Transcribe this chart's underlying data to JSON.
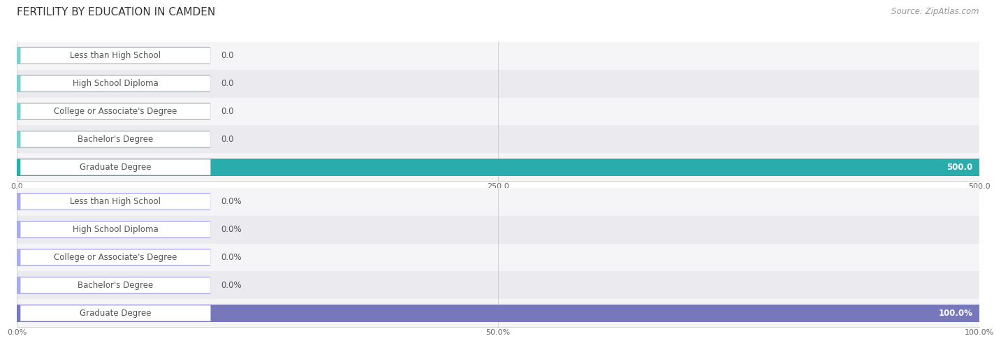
{
  "title": "FERTILITY BY EDUCATION IN CAMDEN",
  "source": "Source: ZipAtlas.com",
  "categories": [
    "Less than High School",
    "High School Diploma",
    "College or Associate's Degree",
    "Bachelor's Degree",
    "Graduate Degree"
  ],
  "values_count": [
    0.0,
    0.0,
    0.0,
    0.0,
    500.0
  ],
  "values_pct": [
    0.0,
    0.0,
    0.0,
    0.0,
    100.0
  ],
  "count_max": 500.0,
  "pct_max": 100.0,
  "count_ticks": [
    0.0,
    250.0,
    500.0
  ],
  "count_tick_labels": [
    "0.0",
    "250.0",
    "500.0"
  ],
  "pct_ticks": [
    0.0,
    50.0,
    100.0
  ],
  "pct_tick_labels": [
    "0.0%",
    "50.0%",
    "100.0%"
  ],
  "bar_color_top_light": "#7DCFCF",
  "bar_color_top_full": "#2AACAC",
  "bar_color_bottom_light": "#AAAAEE",
  "bar_color_bottom_full": "#7777BB",
  "label_text_color": "#555555",
  "row_bg_light": "#F5F5F8",
  "row_bg_dark": "#EAEAEF",
  "value_label_color_normal": "#555555",
  "value_label_color_full": "#FFFFFF",
  "title_fontsize": 11,
  "source_fontsize": 8.5,
  "label_fontsize": 8.5,
  "value_fontsize": 8.5,
  "tick_fontsize": 8,
  "background_color": "#FFFFFF"
}
